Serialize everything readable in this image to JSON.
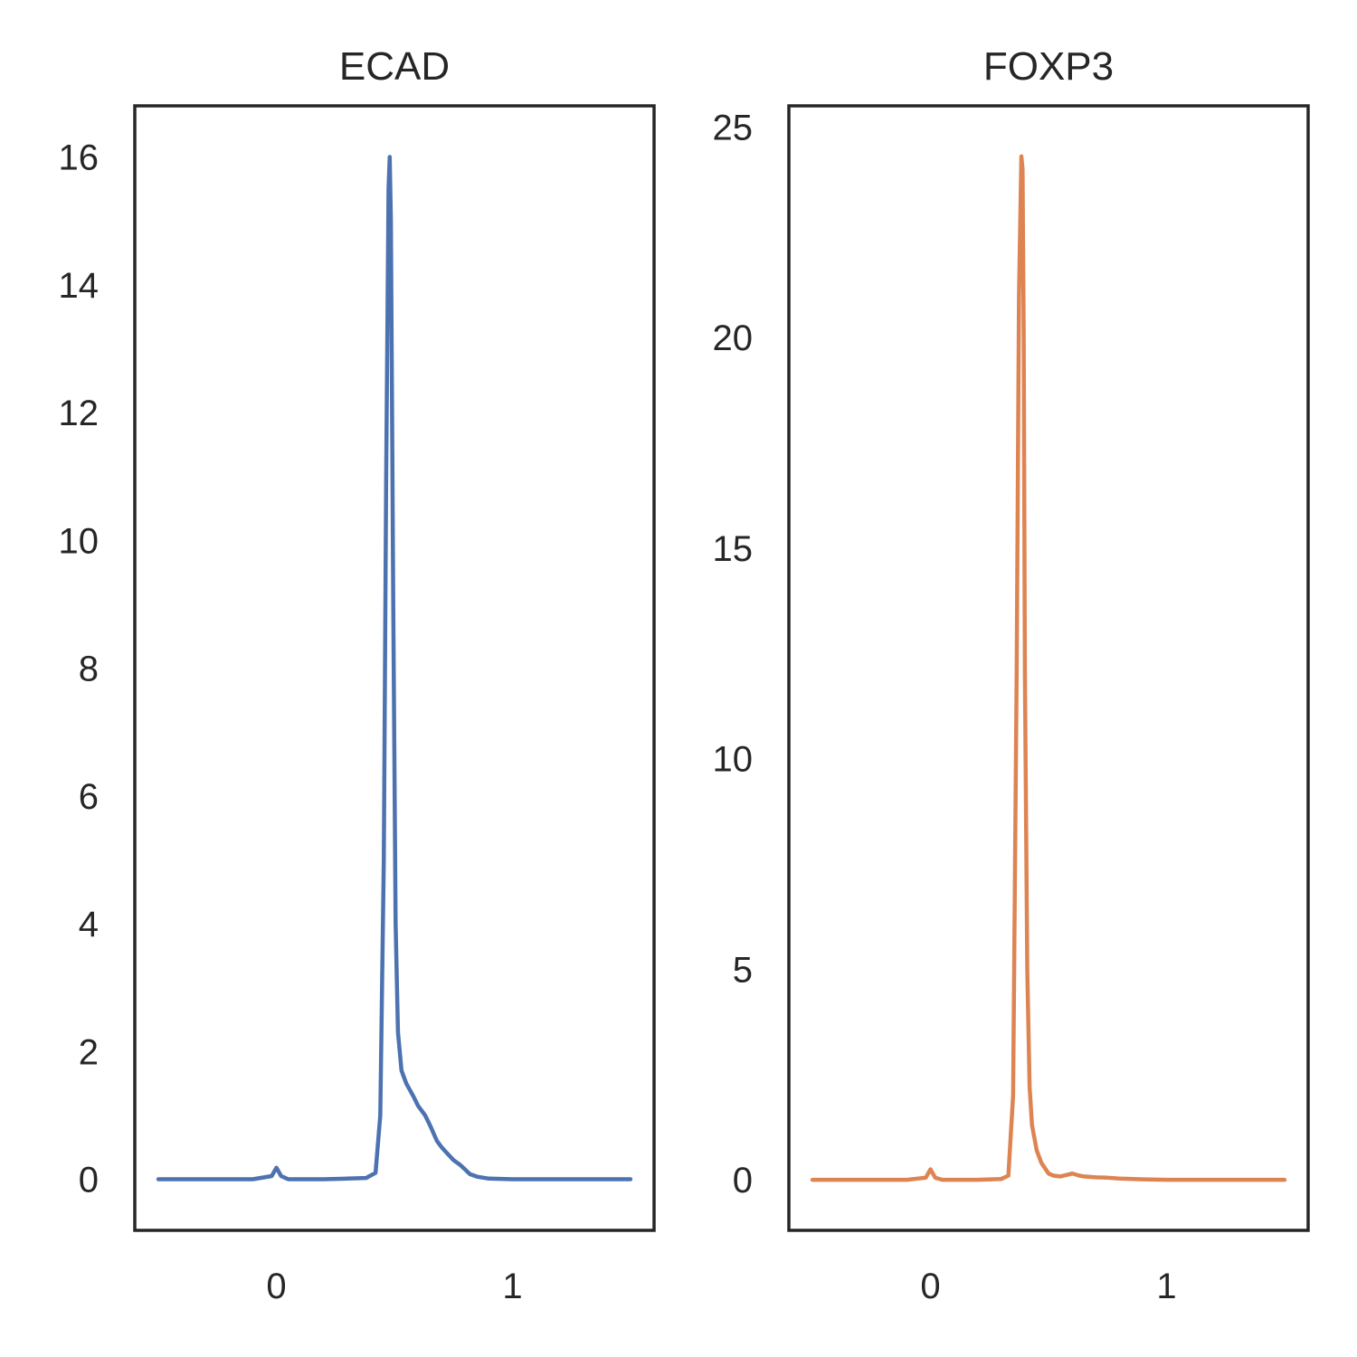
{
  "chart_data": [
    {
      "type": "line",
      "title": "ECAD",
      "xlabel": "",
      "ylabel": "",
      "xlim": [
        -0.6,
        1.6
      ],
      "ylim": [
        -0.8,
        16.8
      ],
      "xticks": [
        0,
        1
      ],
      "yticks": [
        0,
        2,
        4,
        6,
        8,
        10,
        12,
        14,
        16
      ],
      "grid": false,
      "color": "#4c72b0",
      "series": [
        {
          "x": [
            -0.5,
            -0.1,
            -0.02,
            0.0,
            0.02,
            0.05,
            0.1,
            0.2,
            0.3,
            0.38,
            0.42,
            0.44,
            0.455,
            0.465,
            0.475,
            0.48,
            0.485,
            0.495,
            0.505,
            0.515,
            0.53,
            0.55,
            0.58,
            0.6,
            0.63,
            0.65,
            0.68,
            0.7,
            0.72,
            0.75,
            0.78,
            0.8,
            0.82,
            0.85,
            0.9,
            1.0,
            1.2,
            1.5
          ],
          "y": [
            0.0,
            0.0,
            0.05,
            0.18,
            0.05,
            0.0,
            0.0,
            0.0,
            0.01,
            0.02,
            0.1,
            1.0,
            5.0,
            11.0,
            15.5,
            16.0,
            15.0,
            9.0,
            4.0,
            2.3,
            1.7,
            1.5,
            1.3,
            1.15,
            1.0,
            0.85,
            0.6,
            0.5,
            0.42,
            0.3,
            0.22,
            0.15,
            0.08,
            0.04,
            0.01,
            0.0,
            0.0,
            0.0
          ]
        }
      ]
    },
    {
      "type": "line",
      "title": "FOXP3",
      "xlabel": "",
      "ylabel": "",
      "xlim": [
        -0.6,
        1.6
      ],
      "ylim": [
        -1.2,
        25.5
      ],
      "xticks": [
        0,
        1
      ],
      "yticks": [
        0,
        5,
        10,
        15,
        20,
        25
      ],
      "grid": false,
      "color": "#dd8452",
      "series": [
        {
          "x": [
            -0.5,
            -0.1,
            -0.02,
            0.0,
            0.02,
            0.05,
            0.1,
            0.2,
            0.3,
            0.33,
            0.35,
            0.365,
            0.375,
            0.385,
            0.39,
            0.395,
            0.4,
            0.41,
            0.42,
            0.43,
            0.45,
            0.47,
            0.5,
            0.52,
            0.55,
            0.58,
            0.6,
            0.63,
            0.65,
            0.7,
            0.75,
            0.8,
            0.9,
            1.0,
            1.2,
            1.5
          ],
          "y": [
            0.0,
            0.0,
            0.05,
            0.25,
            0.05,
            0.0,
            0.0,
            0.0,
            0.02,
            0.1,
            2.0,
            12.0,
            21.0,
            24.3,
            24.0,
            20.0,
            12.0,
            5.0,
            2.2,
            1.3,
            0.7,
            0.4,
            0.15,
            0.1,
            0.08,
            0.12,
            0.15,
            0.1,
            0.08,
            0.06,
            0.05,
            0.03,
            0.01,
            0.0,
            0.0,
            0.0
          ]
        }
      ]
    }
  ]
}
